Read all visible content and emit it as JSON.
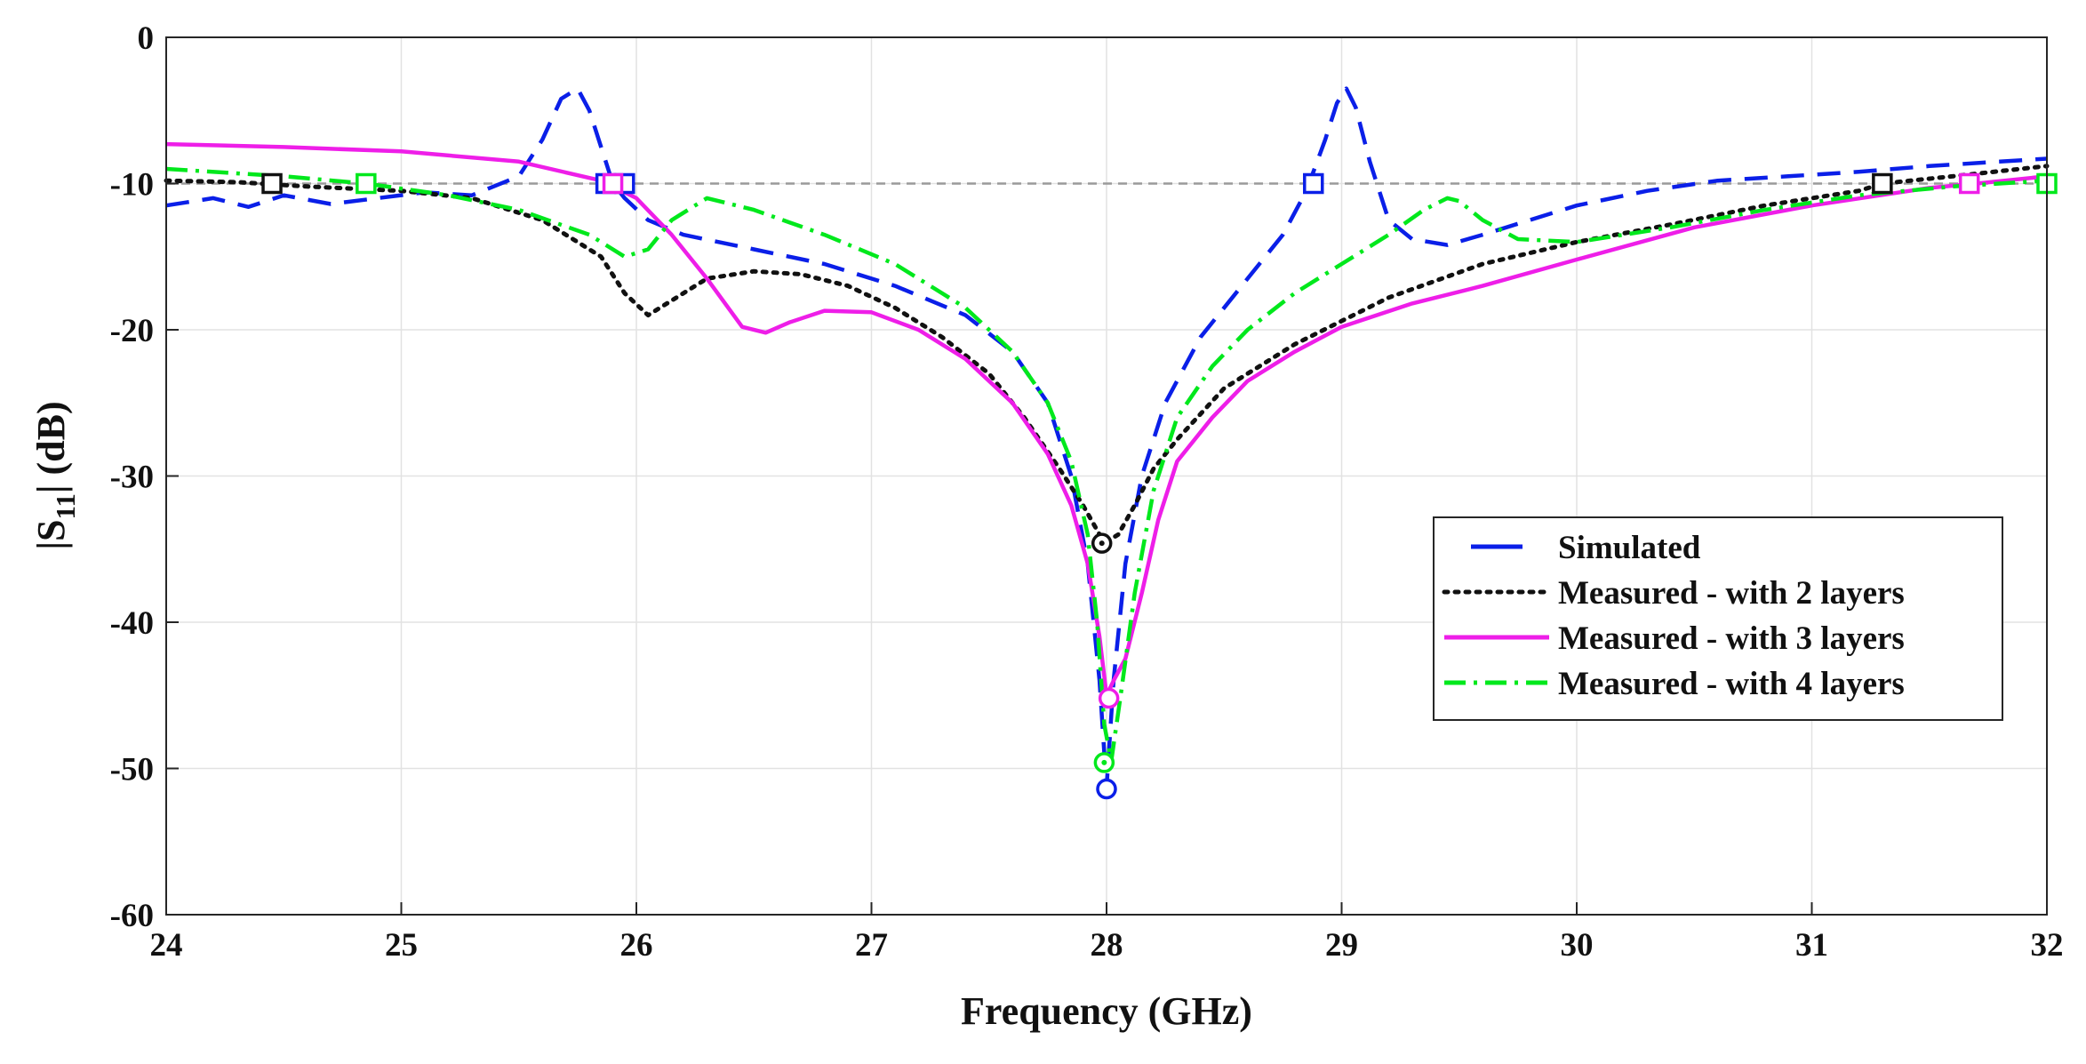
{
  "chart_data": {
    "type": "line",
    "title": "",
    "xlabel": "Frequency (GHz)",
    "ylabel": {
      "prefix": "|S",
      "subscript": "11",
      "suffix": "| (dB)"
    },
    "xlim": [
      24,
      32
    ],
    "ylim": [
      -60,
      0
    ],
    "xticks": [
      24,
      25,
      26,
      27,
      28,
      29,
      30,
      31,
      32
    ],
    "yticks": [
      0,
      -10,
      -20,
      -30,
      -40,
      -50,
      -60
    ],
    "grid": true,
    "legend_position": "right-middle",
    "reference_line": {
      "y": -10,
      "color": "#9a9a9a"
    },
    "series": [
      {
        "name": "Simulated",
        "color": "#0a1fe8",
        "style": "dashed",
        "x": [
          24.0,
          24.2,
          24.35,
          24.5,
          24.7,
          24.9,
          25.1,
          25.3,
          25.5,
          25.6,
          25.68,
          25.75,
          25.8,
          25.85,
          25.9,
          25.95,
          26.05,
          26.2,
          26.5,
          26.8,
          27.1,
          27.4,
          27.6,
          27.75,
          27.85,
          27.92,
          27.97,
          28.0,
          28.03,
          28.08,
          28.15,
          28.25,
          28.4,
          28.6,
          28.75,
          28.85,
          28.93,
          28.98,
          29.02,
          29.06,
          29.12,
          29.2,
          29.3,
          29.45,
          29.6,
          29.8,
          30.0,
          30.3,
          30.6,
          30.9,
          31.2,
          31.5,
          31.8,
          32.0
        ],
        "y": [
          -11.5,
          -11.0,
          -11.6,
          -10.8,
          -11.4,
          -11.0,
          -10.6,
          -10.8,
          -9.5,
          -7.0,
          -4.2,
          -3.5,
          -5.0,
          -7.5,
          -10.0,
          -11.0,
          -12.5,
          -13.5,
          -14.5,
          -15.5,
          -17.0,
          -19.0,
          -21.5,
          -25.0,
          -30.0,
          -36.0,
          -44.0,
          -51.3,
          -44.0,
          -36.0,
          -30.0,
          -25.0,
          -20.5,
          -16.5,
          -13.5,
          -10.5,
          -7.0,
          -4.5,
          -3.5,
          -4.8,
          -8.5,
          -12.5,
          -13.8,
          -14.2,
          -13.5,
          -12.5,
          -11.5,
          -10.5,
          -9.8,
          -9.5,
          -9.2,
          -8.8,
          -8.5,
          -8.3
        ],
        "markers": [
          {
            "x": 25.87,
            "y": -10.0,
            "shape": "square"
          },
          {
            "x": 25.95,
            "y": -10.0,
            "shape": "square"
          },
          {
            "x": 28.88,
            "y": -10.0,
            "shape": "square"
          },
          {
            "x": 28.0,
            "y": -51.4,
            "shape": "circle"
          }
        ]
      },
      {
        "name": "Measured - with 2 layers",
        "color": "#111111",
        "style": "dotted",
        "x": [
          24.0,
          24.3,
          24.6,
          25.0,
          25.3,
          25.6,
          25.85,
          25.95,
          26.05,
          26.15,
          26.3,
          26.5,
          26.7,
          26.9,
          27.1,
          27.3,
          27.5,
          27.65,
          27.8,
          27.9,
          27.97,
          28.0,
          28.05,
          28.12,
          28.2,
          28.3,
          28.5,
          28.8,
          29.2,
          29.6,
          30.0,
          30.4,
          30.8,
          31.2,
          31.3,
          31.6,
          32.0
        ],
        "y": [
          -9.8,
          -9.9,
          -10.2,
          -10.5,
          -11.0,
          -12.5,
          -15.0,
          -17.5,
          -19.0,
          -18.0,
          -16.5,
          -16.0,
          -16.2,
          -17.0,
          -18.5,
          -20.5,
          -23.0,
          -26.0,
          -29.5,
          -32.0,
          -34.0,
          -34.5,
          -34.0,
          -32.0,
          -29.5,
          -27.5,
          -24.0,
          -21.0,
          -17.8,
          -15.5,
          -14.0,
          -12.8,
          -11.5,
          -10.5,
          -10.0,
          -9.5,
          -8.8
        ],
        "markers": [
          {
            "x": 24.45,
            "y": -10.0,
            "shape": "square"
          },
          {
            "x": 31.3,
            "y": -10.0,
            "shape": "square"
          },
          {
            "x": 27.98,
            "y": -34.6,
            "shape": "circle"
          }
        ]
      },
      {
        "name": "Measured - with 3 layers",
        "color": "#ee1ee8",
        "style": "solid",
        "x": [
          24.0,
          24.5,
          25.0,
          25.5,
          25.85,
          26.0,
          26.15,
          26.3,
          26.45,
          26.55,
          26.65,
          26.8,
          27.0,
          27.2,
          27.4,
          27.6,
          27.75,
          27.85,
          27.92,
          27.97,
          28.0,
          28.03,
          28.08,
          28.15,
          28.22,
          28.3,
          28.45,
          28.6,
          28.8,
          29.0,
          29.3,
          29.6,
          30.0,
          30.5,
          31.0,
          31.5,
          31.7,
          32.0
        ],
        "y": [
          -7.3,
          -7.5,
          -7.8,
          -8.5,
          -9.8,
          -11.0,
          -13.5,
          -16.5,
          -19.8,
          -20.2,
          -19.5,
          -18.7,
          -18.8,
          -20.0,
          -22.0,
          -25.0,
          -28.5,
          -32.0,
          -36.0,
          -41.0,
          -45.0,
          -44.0,
          -42.5,
          -38.0,
          -33.0,
          -29.0,
          -26.0,
          -23.5,
          -21.5,
          -19.8,
          -18.2,
          -17.0,
          -15.2,
          -13.0,
          -11.5,
          -10.3,
          -10.0,
          -9.5
        ],
        "markers": [
          {
            "x": 25.9,
            "y": -10.0,
            "shape": "square"
          },
          {
            "x": 31.67,
            "y": -10.0,
            "shape": "square"
          },
          {
            "x": 28.01,
            "y": -45.2,
            "shape": "circle"
          }
        ]
      },
      {
        "name": "Measured - with 4 layers",
        "color": "#00e81c",
        "style": "dashdot",
        "x": [
          24.0,
          24.5,
          24.85,
          25.2,
          25.5,
          25.8,
          25.95,
          26.05,
          26.15,
          26.3,
          26.5,
          26.8,
          27.1,
          27.4,
          27.6,
          27.75,
          27.85,
          27.92,
          27.96,
          27.99,
          28.02,
          28.06,
          28.12,
          28.2,
          28.3,
          28.45,
          28.6,
          28.8,
          29.0,
          29.2,
          29.35,
          29.45,
          29.5,
          29.6,
          29.75,
          30.0,
          30.4,
          30.8,
          31.2,
          31.6,
          32.0
        ],
        "y": [
          -9.0,
          -9.5,
          -10.0,
          -10.8,
          -11.8,
          -13.5,
          -15.0,
          -14.5,
          -12.5,
          -11.0,
          -11.8,
          -13.5,
          -15.5,
          -18.5,
          -21.5,
          -25.0,
          -29.0,
          -34.0,
          -40.0,
          -47.0,
          -49.5,
          -45.0,
          -38.0,
          -31.0,
          -26.0,
          -22.5,
          -20.0,
          -17.5,
          -15.5,
          -13.5,
          -11.8,
          -11.0,
          -11.2,
          -12.5,
          -13.8,
          -14.0,
          -13.0,
          -11.8,
          -10.8,
          -10.2,
          -9.8
        ],
        "markers": [
          {
            "x": 24.85,
            "y": -10.0,
            "shape": "square"
          },
          {
            "x": 32.0,
            "y": -10.0,
            "shape": "square"
          },
          {
            "x": 27.99,
            "y": -49.6,
            "shape": "circle"
          }
        ]
      }
    ]
  }
}
